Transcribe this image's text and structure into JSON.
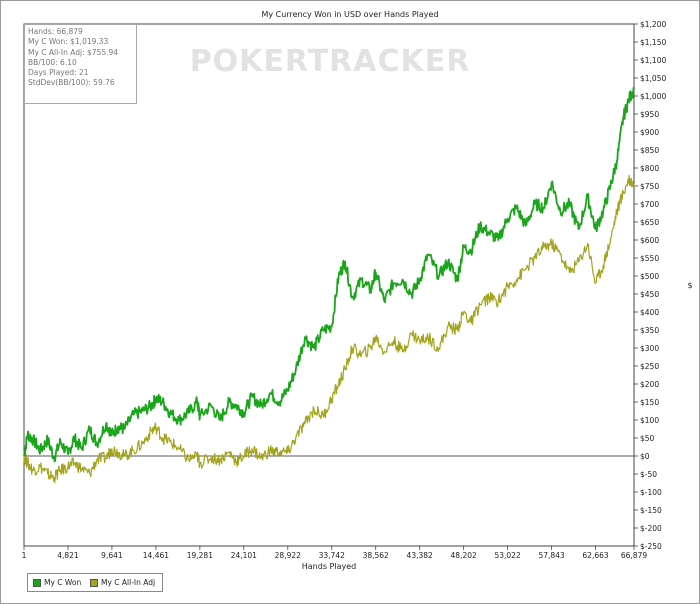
{
  "chart_data": {
    "type": "line",
    "title": "My Currency Won in USD over Hands Played",
    "xlabel": "Hands Played",
    "ylabel": "$",
    "watermark": "POKERTRACKER",
    "x_ticks": [
      "1",
      "4,821",
      "9,641",
      "14,461",
      "19,281",
      "24,101",
      "28,922",
      "33,742",
      "38,562",
      "43,382",
      "48,202",
      "53,022",
      "57,843",
      "62,663",
      "66,879"
    ],
    "xlim": [
      1,
      66879
    ],
    "ylim": [
      -250,
      1200
    ],
    "y_ticks": [
      "$1,200",
      "$1,150",
      "$1,100",
      "$1,050",
      "$1,000",
      "$950",
      "$900",
      "$850",
      "$800",
      "$750",
      "$700",
      "$650",
      "$600",
      "$550",
      "$500",
      "$450",
      "$400",
      "$350",
      "$300",
      "$250",
      "$200",
      "$150",
      "$100",
      "$50",
      "$0",
      "$-50",
      "$-100",
      "$-150",
      "$-200",
      "$-250"
    ],
    "y_tick_values": [
      1200,
      1150,
      1100,
      1050,
      1000,
      950,
      900,
      850,
      800,
      750,
      700,
      650,
      600,
      550,
      500,
      450,
      400,
      350,
      300,
      250,
      200,
      150,
      100,
      50,
      0,
      -50,
      -100,
      -150,
      -200,
      -250
    ],
    "series": [
      {
        "name": "My C Won",
        "color": "#1aa51a",
        "x": [
          1,
          400,
          1000,
          1800,
          2600,
          3300,
          4000,
          4821,
          5500,
          6300,
          7200,
          8000,
          9000,
          9641,
          10300,
          11000,
          12000,
          13000,
          14000,
          14461,
          15200,
          16000,
          17000,
          18000,
          19000,
          19281,
          20500,
          21500,
          22500,
          23300,
          24101,
          25000,
          26000,
          27000,
          28000,
          28922,
          29800,
          30800,
          31800,
          32800,
          33742,
          34500,
          35200,
          36000,
          37000,
          38000,
          38562,
          39500,
          40500,
          41500,
          42500,
          43382,
          44300,
          45500,
          46500,
          47500,
          48202,
          49000,
          50000,
          51000,
          52000,
          53022,
          54000,
          55000,
          56000,
          57000,
          57843,
          58800,
          59800,
          60800,
          61800,
          62663,
          63500,
          64300,
          65000,
          65700,
          66300,
          66879
        ],
        "y": [
          0,
          60,
          45,
          15,
          45,
          -5,
          40,
          5,
          50,
          20,
          75,
          35,
          90,
          60,
          80,
          75,
          115,
          125,
          140,
          160,
          150,
          120,
          100,
          120,
          150,
          110,
          140,
          100,
          150,
          140,
          120,
          165,
          140,
          175,
          150,
          185,
          240,
          330,
          300,
          350,
          360,
          500,
          540,
          440,
          490,
          460,
          510,
          430,
          480,
          490,
          450,
          490,
          560,
          500,
          540,
          490,
          580,
          570,
          640,
          620,
          600,
          660,
          690,
          640,
          700,
          690,
          760,
          680,
          700,
          630,
          720,
          630,
          680,
          750,
          820,
          940,
          990,
          1019
        ]
      },
      {
        "name": "My C All-In Adj",
        "color": "#a3a41c",
        "x": [
          1,
          400,
          1000,
          1800,
          2600,
          3300,
          4000,
          4821,
          5500,
          6300,
          7200,
          8000,
          9000,
          9641,
          10300,
          11000,
          12000,
          13000,
          14000,
          14461,
          15200,
          16000,
          17000,
          18000,
          19000,
          19281,
          20500,
          21500,
          22500,
          23300,
          24101,
          25000,
          26000,
          27000,
          28000,
          28922,
          29800,
          30800,
          31800,
          32800,
          33742,
          34500,
          35200,
          36000,
          37000,
          38000,
          38562,
          39500,
          40500,
          41500,
          42500,
          43382,
          44300,
          45500,
          46500,
          47500,
          48202,
          49000,
          50000,
          51000,
          52000,
          53022,
          54000,
          55000,
          56000,
          57000,
          57843,
          58800,
          59800,
          60800,
          61800,
          62663,
          63500,
          64300,
          65000,
          65700,
          66300,
          66879
        ],
        "y": [
          0,
          -20,
          -40,
          -30,
          -50,
          -60,
          -40,
          -30,
          -20,
          -35,
          -50,
          -10,
          -5,
          20,
          10,
          0,
          15,
          35,
          70,
          80,
          50,
          40,
          20,
          -10,
          0,
          -20,
          -5,
          -10,
          10,
          -15,
          0,
          20,
          -5,
          15,
          10,
          10,
          50,
          90,
          130,
          110,
          160,
          200,
          240,
          300,
          280,
          300,
          330,
          290,
          320,
          290,
          340,
          320,
          330,
          300,
          360,
          350,
          400,
          370,
          420,
          440,
          430,
          470,
          490,
          520,
          550,
          580,
          590,
          560,
          510,
          540,
          590,
          480,
          530,
          600,
          680,
          730,
          770,
          756
        ]
      }
    ]
  },
  "stats": [
    "Hands: 66,879",
    "My C Won: $1,019.33",
    "My C All-In Adj: $755.94",
    "BB/100: 6.10",
    "Days Played: 21",
    "StdDev(BB/100): 59.76"
  ],
  "legend": [
    "My C Won",
    "My C All-In Adj"
  ]
}
